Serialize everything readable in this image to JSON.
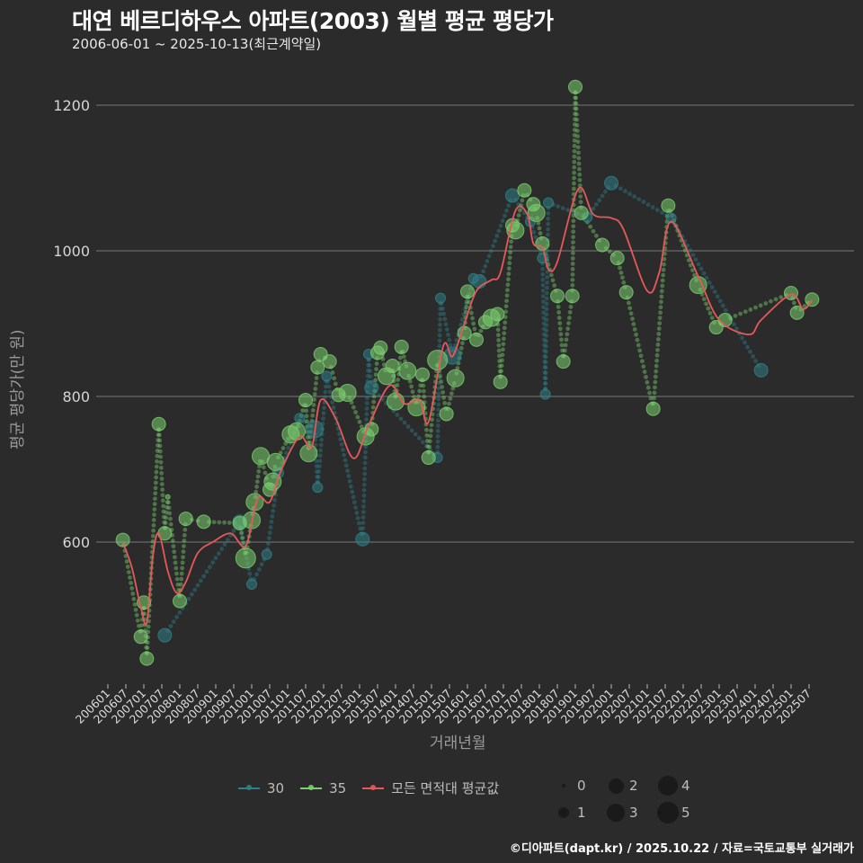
{
  "header": {
    "title": "대연 베르디하우스 아파트(2003) 월별 평균 평당가",
    "subtitle": "2006-06-01 ~ 2025-10-13(최근계약일)"
  },
  "axes": {
    "ylabel": "평균 평당가(만 원)",
    "xlabel": "거래년월"
  },
  "legend": {
    "series": [
      {
        "label": "30",
        "color": "#2f7f86"
      },
      {
        "label": "35",
        "color": "#7ccf6f"
      },
      {
        "label": "모든 면적대 평균값",
        "color": "#e8585a"
      }
    ],
    "sizes": [
      {
        "label": "0",
        "r": 2
      },
      {
        "label": "2",
        "r": 8
      },
      {
        "label": "4",
        "r": 11
      },
      {
        "label": "1",
        "r": 6
      },
      {
        "label": "3",
        "r": 10
      },
      {
        "label": "5",
        "r": 12
      }
    ]
  },
  "footer": {
    "credit": "©디아파트(dapt.kr) / 2025.10.22 / 자료=국토교통부 실거래가"
  },
  "chart_data": {
    "type": "scatter",
    "title": "대연 베르디하우스 아파트(2003) 월별 평균 평당가",
    "subtitle": "2006-06-01 ~ 2025-10-13(최근계약일)",
    "xlabel": "거래년월",
    "ylabel": "평균 평당가(만 원)",
    "ylim": [
      410,
      1250
    ],
    "yticks": [
      600,
      800,
      1000,
      1200
    ],
    "grid": "horizontal",
    "legend_position": "bottom",
    "x_ticks": [
      "200601",
      "200607",
      "200701",
      "200707",
      "200801",
      "200807",
      "200901",
      "200907",
      "201001",
      "201007",
      "201101",
      "201107",
      "201201",
      "201207",
      "201301",
      "201307",
      "201401",
      "201407",
      "201501",
      "201507",
      "201601",
      "201607",
      "201701",
      "201707",
      "201801",
      "201807",
      "201901",
      "201907",
      "202001",
      "202007",
      "202101",
      "202107",
      "202201",
      "202207",
      "202301",
      "202307",
      "202401",
      "202407",
      "202501",
      "202507"
    ],
    "series": [
      {
        "name": "30",
        "color": "#2f7f86",
        "points": [
          {
            "x": "200708",
            "y": 472,
            "n": 2
          },
          {
            "x": "200909",
            "y": 628,
            "n": 2
          },
          {
            "x": "201001",
            "y": 542,
            "n": 1
          },
          {
            "x": "201006",
            "y": 583,
            "n": 1
          },
          {
            "x": "201010",
            "y": 695,
            "n": 1
          },
          {
            "x": "201105",
            "y": 770,
            "n": 1
          },
          {
            "x": "201110",
            "y": 755,
            "n": 3
          },
          {
            "x": "201111",
            "y": 675,
            "n": 1
          },
          {
            "x": "201202",
            "y": 828,
            "n": 1
          },
          {
            "x": "201302",
            "y": 604,
            "n": 2
          },
          {
            "x": "201304",
            "y": 858,
            "n": 1
          },
          {
            "x": "201305",
            "y": 812,
            "n": 2
          },
          {
            "x": "201503",
            "y": 716,
            "n": 1
          },
          {
            "x": "201504",
            "y": 935,
            "n": 1
          },
          {
            "x": "201508",
            "y": 856,
            "n": 3
          },
          {
            "x": "201603",
            "y": 962,
            "n": 1
          },
          {
            "x": "201605",
            "y": 958,
            "n": 2
          },
          {
            "x": "201704",
            "y": 1076,
            "n": 2
          },
          {
            "x": "201710",
            "y": 1040,
            "n": 1
          },
          {
            "x": "201802",
            "y": 990,
            "n": 1
          },
          {
            "x": "201803",
            "y": 803,
            "n": 1
          },
          {
            "x": "201804",
            "y": 1066,
            "n": 1
          },
          {
            "x": "201905",
            "y": 1046,
            "n": 1
          },
          {
            "x": "202001",
            "y": 1093,
            "n": 2
          },
          {
            "x": "202109",
            "y": 1045,
            "n": 1
          },
          {
            "x": "202403",
            "y": 836,
            "n": 2
          }
        ]
      },
      {
        "name": "35",
        "color": "#7ccf6f",
        "points": [
          {
            "x": "200606",
            "y": 603,
            "n": 2
          },
          {
            "x": "200612",
            "y": 470,
            "n": 2
          },
          {
            "x": "200701",
            "y": 517,
            "n": 2
          },
          {
            "x": "200702",
            "y": 440,
            "n": 2
          },
          {
            "x": "200706",
            "y": 762,
            "n": 2
          },
          {
            "x": "200708",
            "y": 612,
            "n": 2
          },
          {
            "x": "200709",
            "y": 662,
            "n": 0
          },
          {
            "x": "200801",
            "y": 519,
            "n": 2
          },
          {
            "x": "200803",
            "y": 632,
            "n": 2
          },
          {
            "x": "200809",
            "y": 628,
            "n": 2
          },
          {
            "x": "200909",
            "y": 626,
            "n": 2
          },
          {
            "x": "200911",
            "y": 578,
            "n": 4
          },
          {
            "x": "201001",
            "y": 630,
            "n": 3
          },
          {
            "x": "201002",
            "y": 655,
            "n": 3
          },
          {
            "x": "201004",
            "y": 718,
            "n": 3
          },
          {
            "x": "201007",
            "y": 672,
            "n": 2
          },
          {
            "x": "201008",
            "y": 683,
            "n": 3
          },
          {
            "x": "201009",
            "y": 710,
            "n": 3
          },
          {
            "x": "201102",
            "y": 748,
            "n": 3
          },
          {
            "x": "201104",
            "y": 752,
            "n": 3
          },
          {
            "x": "201107",
            "y": 795,
            "n": 2
          },
          {
            "x": "201108",
            "y": 722,
            "n": 3
          },
          {
            "x": "201111",
            "y": 840,
            "n": 2
          },
          {
            "x": "201112",
            "y": 858,
            "n": 2
          },
          {
            "x": "201203",
            "y": 848,
            "n": 2
          },
          {
            "x": "201206",
            "y": 802,
            "n": 2
          },
          {
            "x": "201209",
            "y": 805,
            "n": 3
          },
          {
            "x": "201303",
            "y": 745,
            "n": 3
          },
          {
            "x": "201305",
            "y": 755,
            "n": 2
          },
          {
            "x": "201307",
            "y": 860,
            "n": 2
          },
          {
            "x": "201308",
            "y": 867,
            "n": 2
          },
          {
            "x": "201310",
            "y": 828,
            "n": 3
          },
          {
            "x": "201312",
            "y": 842,
            "n": 2
          },
          {
            "x": "201401",
            "y": 793,
            "n": 3
          },
          {
            "x": "201403",
            "y": 868,
            "n": 2
          },
          {
            "x": "201405",
            "y": 835,
            "n": 3
          },
          {
            "x": "201408",
            "y": 785,
            "n": 3
          },
          {
            "x": "201410",
            "y": 830,
            "n": 2
          },
          {
            "x": "201412",
            "y": 716,
            "n": 2
          },
          {
            "x": "201503",
            "y": 850,
            "n": 4
          },
          {
            "x": "201506",
            "y": 776,
            "n": 2
          },
          {
            "x": "201509",
            "y": 825,
            "n": 3
          },
          {
            "x": "201512",
            "y": 887,
            "n": 2
          },
          {
            "x": "201601",
            "y": 944,
            "n": 2
          },
          {
            "x": "201604",
            "y": 878,
            "n": 2
          },
          {
            "x": "201607",
            "y": 902,
            "n": 2
          },
          {
            "x": "201609",
            "y": 908,
            "n": 3
          },
          {
            "x": "201611",
            "y": 913,
            "n": 2
          },
          {
            "x": "201612",
            "y": 820,
            "n": 2
          },
          {
            "x": "201704",
            "y": 1035,
            "n": 2
          },
          {
            "x": "201705",
            "y": 1028,
            "n": 3
          },
          {
            "x": "201708",
            "y": 1083,
            "n": 2
          },
          {
            "x": "201711",
            "y": 1064,
            "n": 2
          },
          {
            "x": "201712",
            "y": 1052,
            "n": 3
          },
          {
            "x": "201802",
            "y": 1010,
            "n": 2
          },
          {
            "x": "201807",
            "y": 938,
            "n": 2
          },
          {
            "x": "201809",
            "y": 848,
            "n": 2
          },
          {
            "x": "201812",
            "y": 938,
            "n": 2
          },
          {
            "x": "201901",
            "y": 1225,
            "n": 2
          },
          {
            "x": "201903",
            "y": 1052,
            "n": 2
          },
          {
            "x": "201910",
            "y": 1008,
            "n": 2
          },
          {
            "x": "202003",
            "y": 990,
            "n": 2
          },
          {
            "x": "202006",
            "y": 943,
            "n": 2
          },
          {
            "x": "202103",
            "y": 783,
            "n": 2
          },
          {
            "x": "202108",
            "y": 1062,
            "n": 2
          },
          {
            "x": "202206",
            "y": 953,
            "n": 3
          },
          {
            "x": "202212",
            "y": 895,
            "n": 2
          },
          {
            "x": "202303",
            "y": 905,
            "n": 2
          },
          {
            "x": "202501",
            "y": 942,
            "n": 2
          },
          {
            "x": "202503",
            "y": 915,
            "n": 2
          },
          {
            "x": "202508",
            "y": 933,
            "n": 2
          }
        ]
      },
      {
        "name": "모든 면적대 평균값",
        "color": "#e8585a",
        "type": "line",
        "points": [
          {
            "x": "200606",
            "y": 600
          },
          {
            "x": "200609",
            "y": 565
          },
          {
            "x": "200612",
            "y": 510
          },
          {
            "x": "200702",
            "y": 490
          },
          {
            "x": "200704",
            "y": 580
          },
          {
            "x": "200706",
            "y": 612
          },
          {
            "x": "200709",
            "y": 560
          },
          {
            "x": "200712",
            "y": 530
          },
          {
            "x": "200803",
            "y": 545
          },
          {
            "x": "200807",
            "y": 585
          },
          {
            "x": "200812",
            "y": 600
          },
          {
            "x": "200906",
            "y": 612
          },
          {
            "x": "200911",
            "y": 595
          },
          {
            "x": "201003",
            "y": 660
          },
          {
            "x": "201007",
            "y": 655
          },
          {
            "x": "201011",
            "y": 700
          },
          {
            "x": "201105",
            "y": 745
          },
          {
            "x": "201109",
            "y": 730
          },
          {
            "x": "201112",
            "y": 795
          },
          {
            "x": "201205",
            "y": 770
          },
          {
            "x": "201211",
            "y": 715
          },
          {
            "x": "201304",
            "y": 760
          },
          {
            "x": "201311",
            "y": 815
          },
          {
            "x": "201404",
            "y": 790
          },
          {
            "x": "201409",
            "y": 795
          },
          {
            "x": "201412",
            "y": 765
          },
          {
            "x": "201505",
            "y": 870
          },
          {
            "x": "201508",
            "y": 855
          },
          {
            "x": "201512",
            "y": 900
          },
          {
            "x": "201604",
            "y": 945
          },
          {
            "x": "201609",
            "y": 960
          },
          {
            "x": "201612",
            "y": 970
          },
          {
            "x": "201705",
            "y": 1055
          },
          {
            "x": "201709",
            "y": 1050
          },
          {
            "x": "201711",
            "y": 1010
          },
          {
            "x": "201802",
            "y": 1005
          },
          {
            "x": "201804",
            "y": 975
          },
          {
            "x": "201807",
            "y": 985
          },
          {
            "x": "201902",
            "y": 1085
          },
          {
            "x": "201907",
            "y": 1050
          },
          {
            "x": "202001",
            "y": 1045
          },
          {
            "x": "202005",
            "y": 1030
          },
          {
            "x": "202101",
            "y": 945
          },
          {
            "x": "202105",
            "y": 970
          },
          {
            "x": "202109",
            "y": 1040
          },
          {
            "x": "202206",
            "y": 965
          },
          {
            "x": "202301",
            "y": 905
          },
          {
            "x": "202311",
            "y": 885
          },
          {
            "x": "202403",
            "y": 905
          },
          {
            "x": "202501",
            "y": 940
          },
          {
            "x": "202505",
            "y": 920
          },
          {
            "x": "202508",
            "y": 932
          }
        ]
      }
    ]
  }
}
